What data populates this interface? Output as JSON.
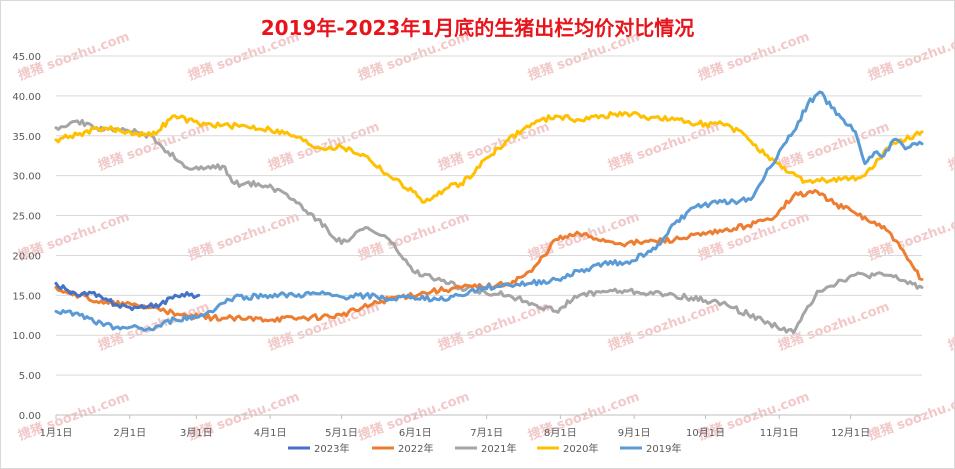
{
  "chart_data": {
    "type": "line",
    "title": "2019年-2023年1月底的生猪出栏均价对比情况",
    "xlabel": "",
    "ylabel": "",
    "ylim": [
      0,
      45
    ],
    "y_ticks": [
      "0.00",
      "5.00",
      "10.00",
      "15.00",
      "20.00",
      "25.00",
      "30.00",
      "35.00",
      "40.00",
      "45.00"
    ],
    "x_ticks": [
      "1月1日",
      "2月1日",
      "3月1日",
      "4月1日",
      "5月1日",
      "6月1日",
      "7月1日",
      "8月1日",
      "9月1日",
      "10月1日",
      "11月1日",
      "12月1日"
    ],
    "grid": true,
    "legend_position": "bottom",
    "colors": {
      "2023": "#4472c4",
      "2022": "#ed7d31",
      "2021": "#a5a5a5",
      "2020": "#ffc000",
      "2019": "#5b9bd5",
      "title": "#e8141b"
    },
    "series": [
      {
        "name": "2023年",
        "key": "2023",
        "x": [
          0,
          5,
          10,
          15,
          20,
          25,
          31,
          37,
          44,
          50,
          56,
          60
        ],
        "y": [
          16.5,
          15.6,
          14.9,
          15.3,
          14.5,
          13.9,
          13.5,
          13.4,
          13.9,
          15.0,
          15.0,
          15.0
        ]
      },
      {
        "name": "2022年",
        "key": "2022",
        "x": [
          0,
          10,
          20,
          32,
          45,
          50,
          60,
          80,
          100,
          120,
          140,
          158,
          170,
          185,
          190,
          200,
          210,
          220,
          232,
          240,
          260,
          280,
          300,
          310,
          320,
          327,
          335,
          350,
          358,
          364
        ],
        "y": [
          16.0,
          15.0,
          14.0,
          13.8,
          13.3,
          12.5,
          12.3,
          12.0,
          12.1,
          12.5,
          14.6,
          15.5,
          16.0,
          16.2,
          16.5,
          18.0,
          22.0,
          22.7,
          21.8,
          21.5,
          22.0,
          23.0,
          24.5,
          27.5,
          28.0,
          26.5,
          25.5,
          23.0,
          19.5,
          17.0
        ]
      },
      {
        "name": "2021年",
        "key": "2021",
        "x": [
          0,
          8,
          15,
          20,
          30,
          40,
          47,
          55,
          60,
          70,
          75,
          85,
          95,
          100,
          110,
          120,
          130,
          140,
          150,
          160,
          170,
          180,
          190,
          200,
          210,
          220,
          230,
          240,
          260,
          280,
          300,
          310,
          320,
          335,
          350,
          364
        ],
        "y": [
          36.0,
          36.8,
          36.3,
          35.7,
          35.7,
          35.0,
          33.0,
          31.0,
          30.8,
          31.2,
          29.0,
          29.0,
          28.0,
          27.0,
          24.5,
          21.5,
          23.5,
          22.0,
          18.0,
          17.0,
          16.0,
          15.5,
          15.0,
          14.0,
          13.0,
          15.0,
          15.5,
          15.5,
          15.0,
          14.0,
          11.5,
          10.3,
          15.5,
          17.5,
          17.5,
          16.0
        ]
      },
      {
        "name": "2020年",
        "key": "2020",
        "x": [
          0,
          10,
          20,
          30,
          40,
          50,
          60,
          70,
          80,
          90,
          100,
          110,
          120,
          130,
          140,
          150,
          155,
          160,
          165,
          170,
          175,
          180,
          190,
          200,
          210,
          220,
          230,
          240,
          250,
          260,
          270,
          280,
          290,
          300,
          305,
          315,
          330,
          340,
          350,
          364
        ],
        "y": [
          34.5,
          35.3,
          36.0,
          35.5,
          35.0,
          37.5,
          36.5,
          36.3,
          36.2,
          35.8,
          35.0,
          33.5,
          33.6,
          32.5,
          30.0,
          28.0,
          26.7,
          27.5,
          28.5,
          29.0,
          30.0,
          32.0,
          34.5,
          36.5,
          37.5,
          37.0,
          37.5,
          37.8,
          37.3,
          37.0,
          36.5,
          36.5,
          35.0,
          32.0,
          31.0,
          29.3,
          29.5,
          30.0,
          33.5,
          35.5
        ]
      },
      {
        "name": "2019年",
        "key": "2019",
        "x": [
          0,
          10,
          20,
          28,
          40,
          50,
          60,
          65,
          70,
          75,
          80,
          90,
          100,
          110,
          120,
          130,
          140,
          150,
          160,
          170,
          180,
          190,
          200,
          210,
          220,
          225,
          230,
          240,
          250,
          255,
          260,
          268,
          275,
          285,
          292,
          300,
          305,
          310,
          316,
          321,
          326,
          331,
          336,
          340,
          345,
          348,
          352,
          358,
          364
        ],
        "y": [
          13.0,
          12.5,
          11.2,
          11.0,
          10.7,
          12.0,
          12.3,
          13.0,
          14.0,
          14.8,
          14.8,
          15.0,
          15.0,
          15.2,
          14.8,
          15.0,
          14.5,
          14.8,
          14.5,
          15.0,
          16.0,
          16.3,
          16.5,
          17.0,
          18.0,
          18.5,
          19.0,
          19.2,
          20.5,
          22.0,
          24.0,
          26.0,
          26.5,
          26.8,
          27.0,
          31.0,
          33.5,
          35.5,
          39.0,
          40.5,
          38.5,
          37.0,
          35.5,
          31.5,
          33.0,
          32.5,
          34.5,
          33.5,
          34.0
        ]
      }
    ],
    "legend": [
      "2023年",
      "2022年",
      "2021年",
      "2020年",
      "2019年"
    ],
    "watermark": "搜猪 soozhu.com"
  }
}
